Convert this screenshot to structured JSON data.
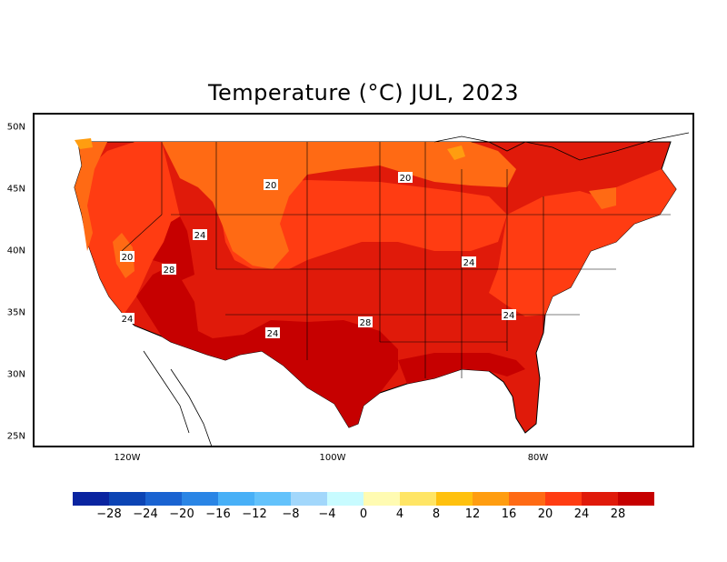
{
  "title": "Temperature (°C) JUL, 2023",
  "map": {
    "lat_ticks": [
      "50N",
      "45N",
      "40N",
      "35N",
      "30N",
      "25N"
    ],
    "lon_ticks": [
      "120W",
      "100W",
      "80W"
    ],
    "contour_labels": [
      {
        "text": "20",
        "region": "northern-rockies"
      },
      {
        "text": "20",
        "region": "upper-midwest"
      },
      {
        "text": "20",
        "region": "sierra-nevada"
      },
      {
        "text": "24",
        "region": "great-basin"
      },
      {
        "text": "28",
        "region": "southern-nevada"
      },
      {
        "text": "24",
        "region": "southern-california-coast"
      },
      {
        "text": "24",
        "region": "new-mexico"
      },
      {
        "text": "28",
        "region": "texas"
      },
      {
        "text": "24",
        "region": "ohio-valley"
      },
      {
        "text": "24",
        "region": "carolinas"
      }
    ]
  },
  "legend": {
    "colors": [
      "#0a24a0",
      "#0c44b4",
      "#1a63d1",
      "#2a85e5",
      "#48b0f7",
      "#63c2fb",
      "#a2d7fb",
      "#c8fbff",
      "#fffbb2",
      "#ffe565",
      "#ffc10e",
      "#ff9d10",
      "#ff6a14",
      "#ff3c12",
      "#e01a0a",
      "#c60000"
    ],
    "labels": [
      "−28",
      "−24",
      "−20",
      "−16",
      "−12",
      "−8",
      "−4",
      "0",
      "4",
      "8",
      "12",
      "16",
      "20",
      "24",
      "28"
    ]
  }
}
